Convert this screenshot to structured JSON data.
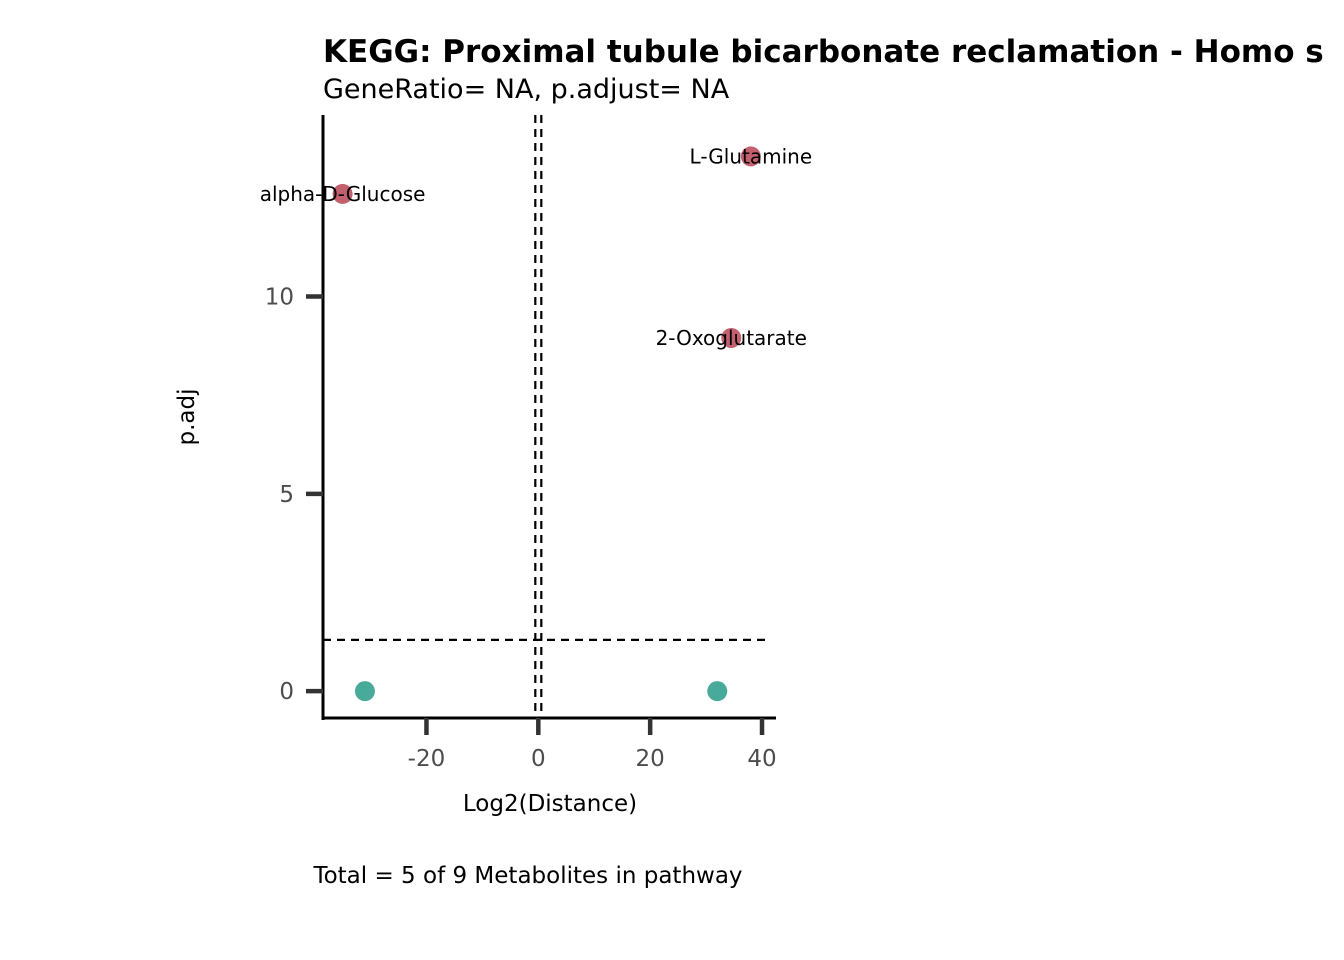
{
  "chart_data": {
    "type": "scatter",
    "title": "KEGG: Proximal tubule bicarbonate reclamation - Homo s",
    "subtitle": "GeneRatio= NA, p.adjust= NA",
    "xlabel": "Log2(Distance)",
    "ylabel": "p.adj",
    "caption": "Total = 5 of 9 Metabolites in pathway",
    "xlim": [
      -38.5,
      42.5
    ],
    "ylim": [
      -0.68,
      14.6
    ],
    "xticks": [
      -20,
      0,
      20,
      40
    ],
    "yticks": [
      0,
      5,
      10
    ],
    "xtick_labels": [
      "-20",
      "0",
      "20",
      "40"
    ],
    "ytick_labels": [
      "0",
      "5",
      "10"
    ],
    "grid": false,
    "thresholds": {
      "vertical_x": 0,
      "horizontal_y": 1.3
    },
    "colors": {
      "significant": "#c2606e",
      "not_significant": "#48aa9b"
    },
    "points": [
      {
        "x": -35,
        "y": 12.6,
        "label": "alpha-D-Glucose",
        "group": "significant"
      },
      {
        "x": 38,
        "y": 13.55,
        "label": "L-Glutamine",
        "group": "significant"
      },
      {
        "x": 34.5,
        "y": 8.95,
        "label": "2-Oxoglutarate",
        "group": "significant"
      },
      {
        "x": -31,
        "y": 0,
        "label": "",
        "group": "not_significant"
      },
      {
        "x": 32,
        "y": 0,
        "label": "",
        "group": "not_significant"
      }
    ]
  }
}
